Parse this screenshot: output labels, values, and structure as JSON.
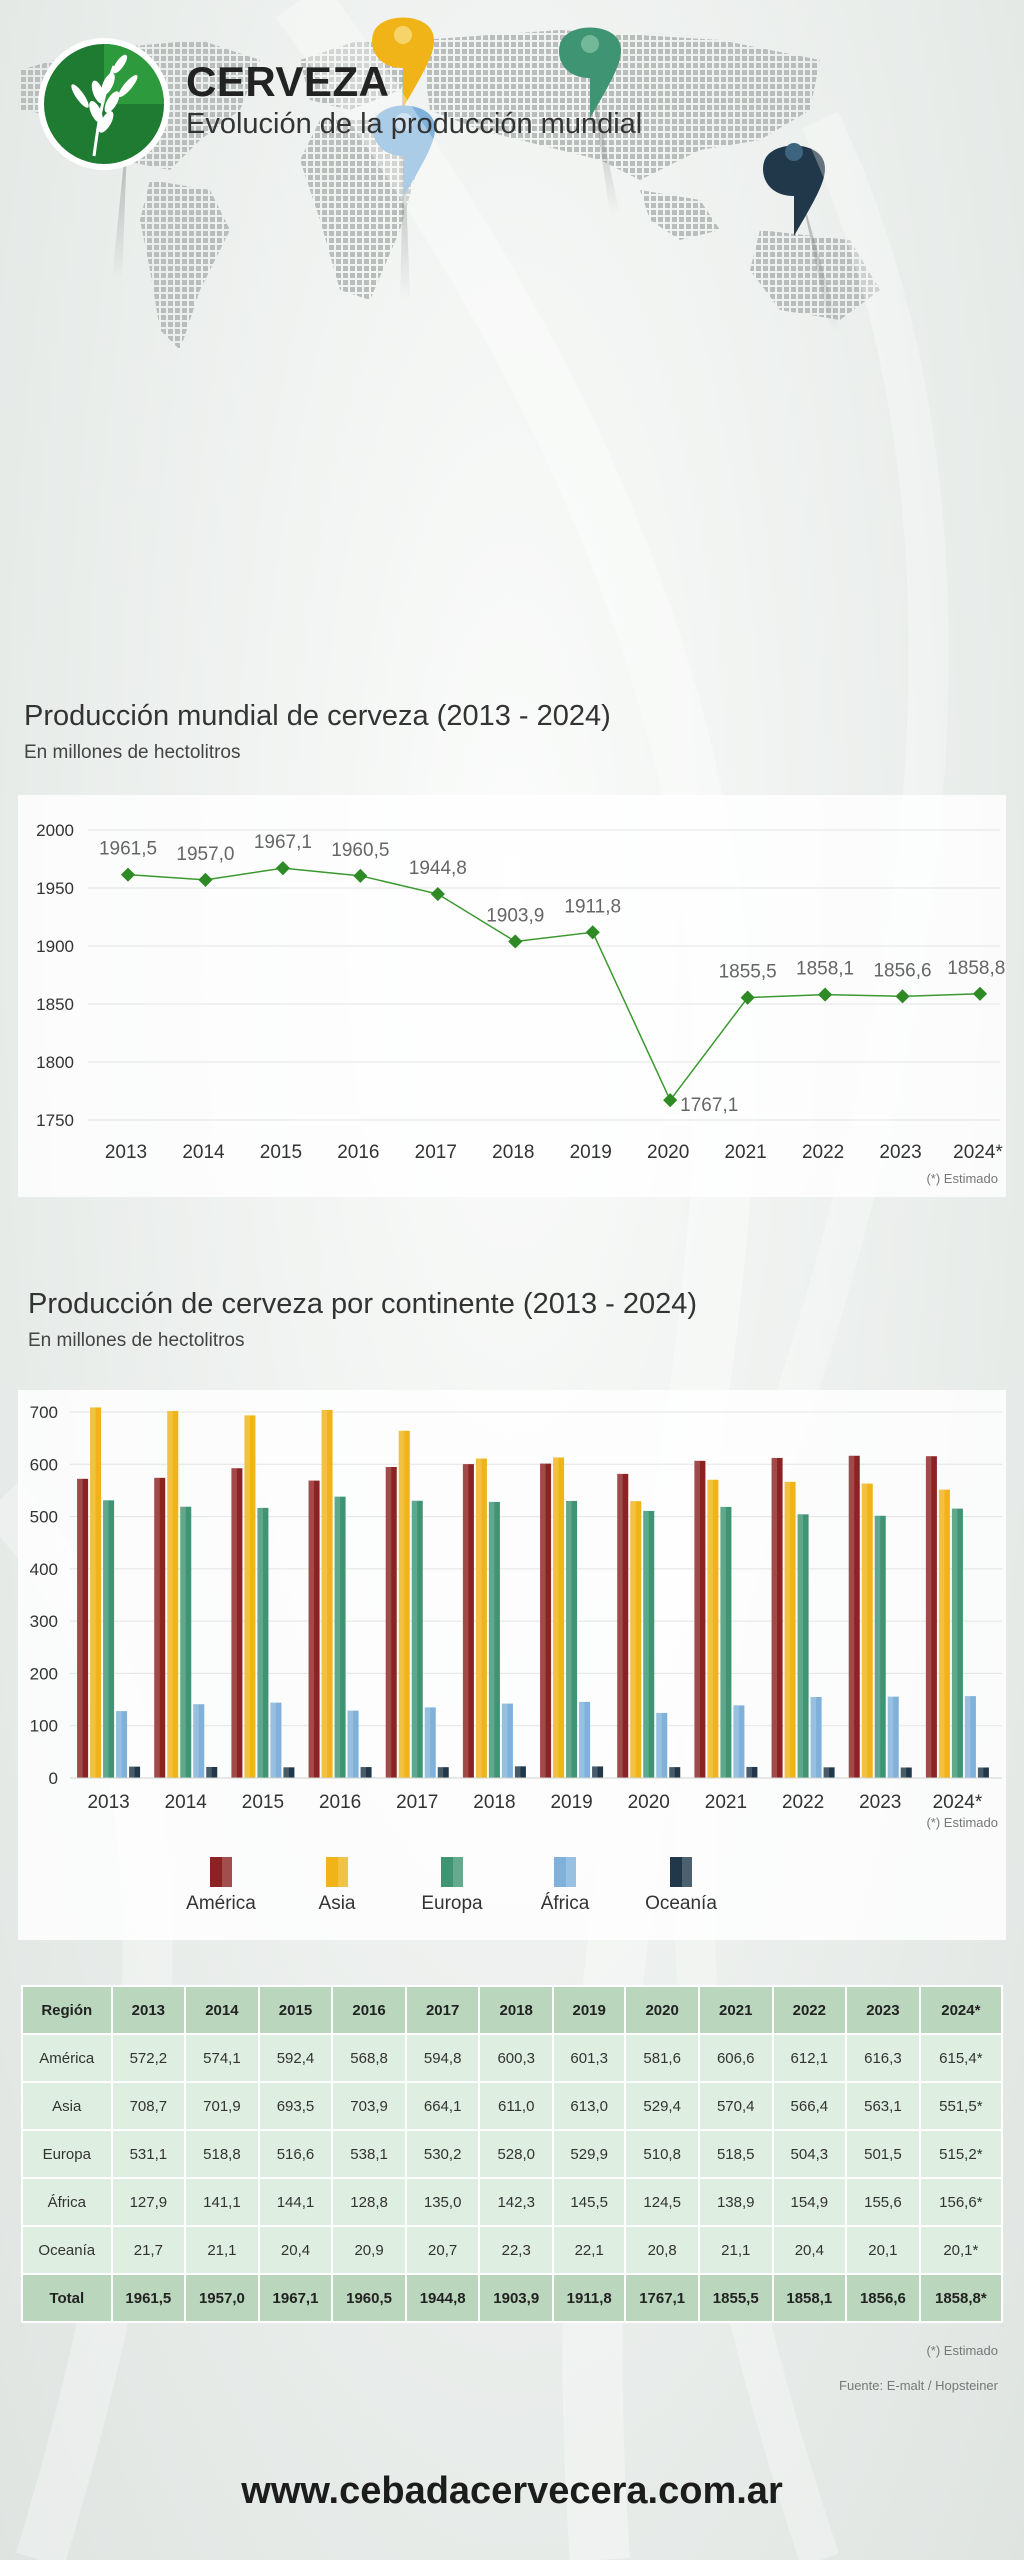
{
  "header": {
    "title": "CERVEZA",
    "subtitle": "Evolución de la producción mundial"
  },
  "colors": {
    "america": "#8b2323",
    "asia": "#f0b418",
    "europa": "#3f9474",
    "africa": "#7fb1da",
    "oceania": "#203849",
    "line": "#3a9a2e"
  },
  "line_section": {
    "title": "Producción mundial de cerveza (2013 - 2024)",
    "subtitle": "En millones de hectolitros",
    "note": "(*) Estimado"
  },
  "bar_section": {
    "title": "Producción de cerveza por continente (2013 - 2024)",
    "subtitle": "En millones de hectolitros",
    "note": "(*) Estimado"
  },
  "chart_data": [
    {
      "type": "line",
      "title": "Producción mundial de cerveza (2013 - 2024)",
      "subtitle": "En millones de hectolitros",
      "categories": [
        "2013",
        "2014",
        "2015",
        "2016",
        "2017",
        "2018",
        "2019",
        "2020",
        "2021",
        "2022",
        "2023",
        "2024*"
      ],
      "values": [
        1961.5,
        1957.0,
        1967.1,
        1960.5,
        1944.8,
        1903.9,
        1911.8,
        1767.1,
        1855.5,
        1858.1,
        1856.6,
        1858.8
      ],
      "data_labels": [
        "1961,5",
        "1957,0",
        "1967,1",
        "1960,5",
        "1944,8",
        "1903,9",
        "1911,8",
        "1767,1",
        "1855,5",
        "1858,1",
        "1856,6",
        "1858,8*"
      ],
      "ylim": [
        1750,
        2000
      ],
      "yticks": [
        1750,
        1800,
        1850,
        1900,
        1950,
        2000
      ],
      "grid": true
    },
    {
      "type": "bar",
      "title": "Producción de cerveza por continente (2013 - 2024)",
      "subtitle": "En millones de hectolitros",
      "categories": [
        "2013",
        "2014",
        "2015",
        "2016",
        "2017",
        "2018",
        "2019",
        "2020",
        "2021",
        "2022",
        "2023",
        "2024*"
      ],
      "series": [
        {
          "name": "América",
          "values": [
            572.2,
            574.1,
            592.4,
            568.8,
            594.8,
            600.3,
            601.3,
            581.6,
            606.6,
            612.1,
            616.3,
            615.4
          ]
        },
        {
          "name": "Asia",
          "values": [
            708.7,
            701.9,
            693.5,
            703.9,
            664.1,
            611.0,
            613.0,
            529.4,
            570.4,
            566.4,
            563.1,
            551.5
          ]
        },
        {
          "name": "Europa",
          "values": [
            531.1,
            518.8,
            516.6,
            538.1,
            530.2,
            528.0,
            529.9,
            510.8,
            518.5,
            504.3,
            501.5,
            515.2
          ]
        },
        {
          "name": "África",
          "values": [
            127.9,
            141.1,
            144.1,
            128.8,
            135.0,
            142.3,
            145.5,
            124.5,
            138.9,
            154.9,
            155.6,
            156.6
          ]
        },
        {
          "name": "Oceanía",
          "values": [
            21.7,
            21.1,
            20.4,
            20.9,
            20.7,
            22.3,
            22.1,
            20.8,
            21.1,
            20.4,
            20.1,
            20.1
          ]
        }
      ],
      "ylim": [
        0,
        700
      ],
      "yticks": [
        0,
        100,
        200,
        300,
        400,
        500,
        600,
        700
      ],
      "legend": "bottom",
      "grid": true
    },
    {
      "type": "table",
      "columns": [
        "Región",
        "2013",
        "2014",
        "2015",
        "2016",
        "2017",
        "2018",
        "2019",
        "2020",
        "2021",
        "2022",
        "2023",
        "2024*"
      ],
      "rows": [
        [
          "América",
          "572,2",
          "574,1",
          "592,4",
          "568,8",
          "594,8",
          "600,3",
          "601,3",
          "581,6",
          "606,6",
          "612,1",
          "616,3",
          "615,4*"
        ],
        [
          "Asia",
          "708,7",
          "701,9",
          "693,5",
          "703,9",
          "664,1",
          "611,0",
          "613,0",
          "529,4",
          "570,4",
          "566,4",
          "563,1",
          "551,5*"
        ],
        [
          "Europa",
          "531,1",
          "518,8",
          "516,6",
          "538,1",
          "530,2",
          "528,0",
          "529,9",
          "510,8",
          "518,5",
          "504,3",
          "501,5",
          "515,2*"
        ],
        [
          "África",
          "127,9",
          "141,1",
          "144,1",
          "128,8",
          "135,0",
          "142,3",
          "145,5",
          "124,5",
          "138,9",
          "154,9",
          "155,6",
          "156,6*"
        ],
        [
          "Oceanía",
          "21,7",
          "21,1",
          "20,4",
          "20,9",
          "20,7",
          "22,3",
          "22,1",
          "20,8",
          "21,1",
          "20,4",
          "20,1",
          "20,1*"
        ]
      ],
      "total": [
        "Total",
        "1961,5",
        "1957,0",
        "1967,1",
        "1960,5",
        "1944,8",
        "1903,9",
        "1911,8",
        "1767,1",
        "1855,5",
        "1858,1",
        "1856,6",
        "1858,8*"
      ]
    }
  ],
  "table_notes": {
    "estimado": "(*) Estimado",
    "source": "Fuente: E-malt / Hopsteiner"
  },
  "footer": {
    "url": "www.cebadacervecera.com.ar"
  }
}
